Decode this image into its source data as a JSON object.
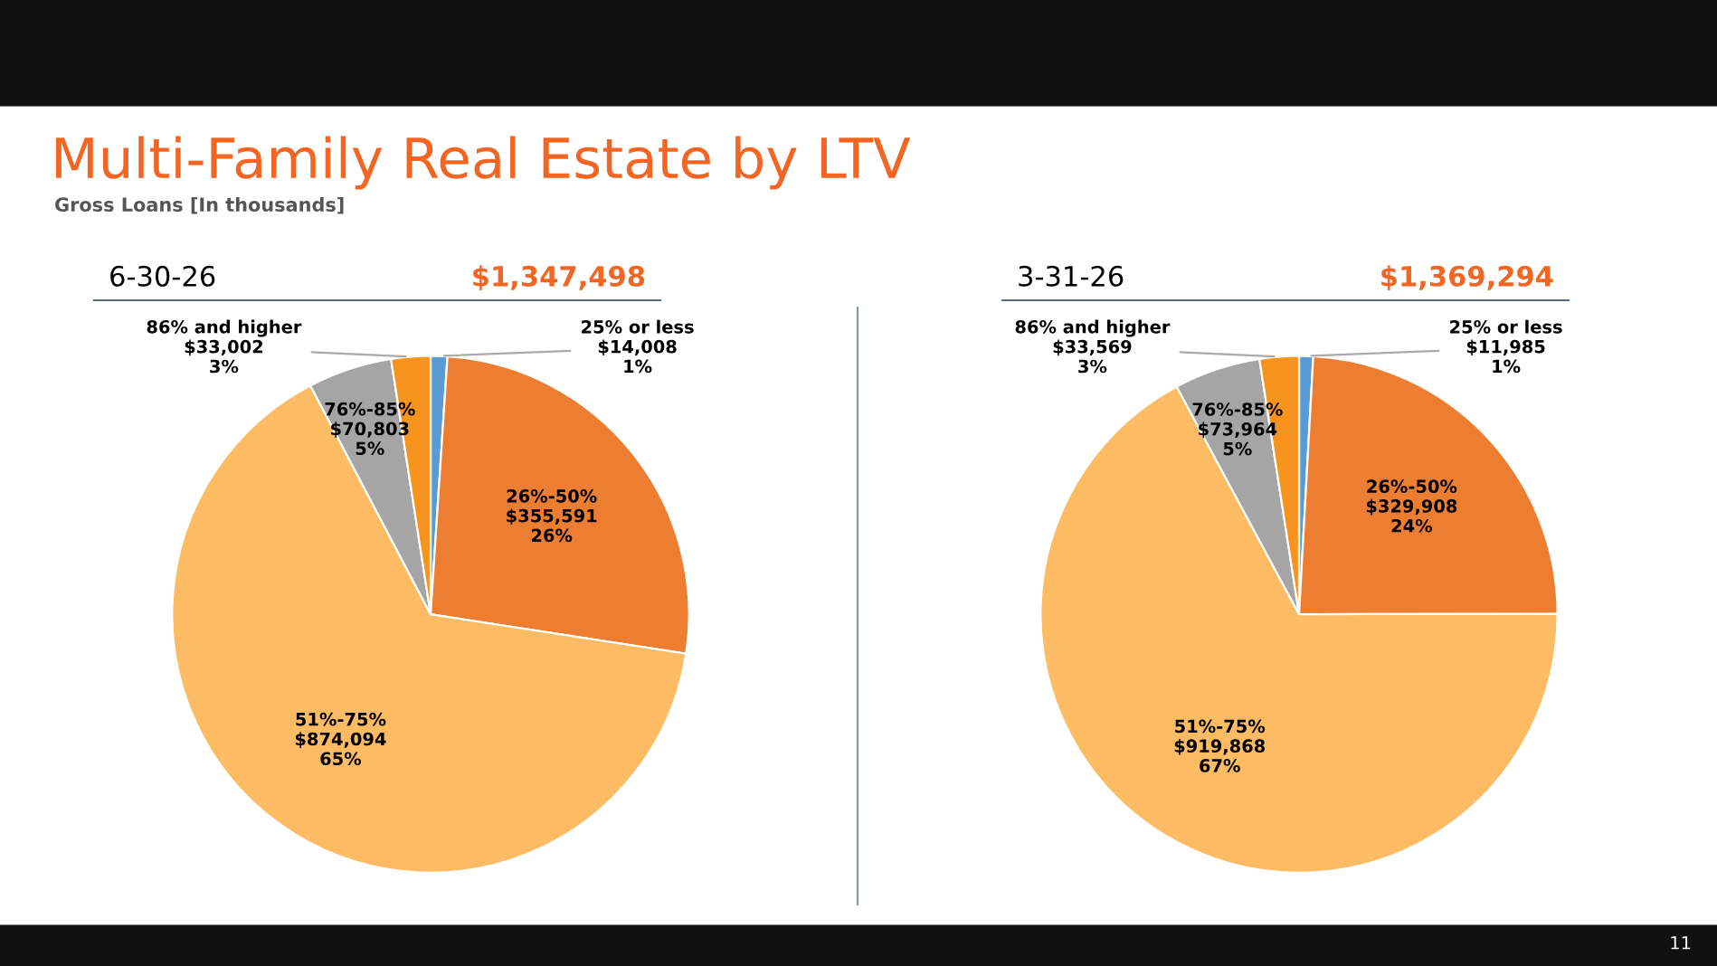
{
  "chart_data": [
    {
      "type": "pie",
      "title": "6-30-26",
      "subtitle": "$1,347,498",
      "categories": [
        "25% or less",
        "26%-50%",
        "51%-75%",
        "76%-85%",
        "86% and higher"
      ],
      "values": [
        14008,
        355591,
        874094,
        70803,
        33002
      ],
      "value_labels": [
        "$14,008\n1%",
        "$355,591\n26%",
        "$874,094\n65%",
        "$70,803\n5%",
        "$33,002\n3%"
      ],
      "colors": [
        "#5b9bd5",
        "#ed7d31",
        "#fdbb63",
        "#a5a5a5",
        "#f7941d"
      ],
      "annotations": [
        "Multi-Family Real Estate by LTV",
        "Gross Loans [In thousands]"
      ]
    },
    {
      "type": "pie",
      "title": "3-31-26",
      "subtitle": "$1,369,294",
      "categories": [
        "25% or less",
        "26%-50%",
        "51%-75%",
        "76%-85%",
        "86% and higher"
      ],
      "values": [
        11985,
        329908,
        919868,
        73964,
        33569
      ],
      "value_labels": [
        "$11,985\n1%",
        "$329,908\n24%",
        "$919,868\n67%",
        "$73,964\n5%",
        "$33,569\n3%"
      ],
      "colors": [
        "#5b9bd5",
        "#ed7d31",
        "#fdbb63",
        "#a5a5a5",
        "#f7941d"
      ],
      "annotations": [
        "11"
      ]
    }
  ]
}
